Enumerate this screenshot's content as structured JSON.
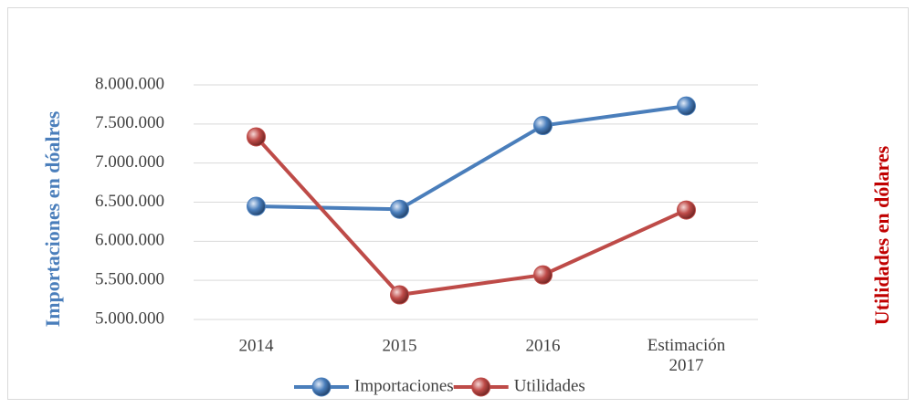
{
  "chart_data": {
    "type": "line",
    "categories": [
      "2014",
      "2015",
      "2016",
      "Estimación 2017"
    ],
    "series": [
      {
        "name": "Importaciones",
        "color": "#4a7ebb",
        "values": [
          6447000,
          6410000,
          7480000,
          7730000
        ]
      },
      {
        "name": "Utilidades",
        "color": "#be4b48",
        "values": [
          7335000,
          5315000,
          5570000,
          6400000
        ]
      }
    ],
    "y_label": "Importaciones en dóalres",
    "y2_label": "Utilidades en dólares",
    "ylim": [
      5000000,
      8000000
    ],
    "yticks": [
      {
        "value": 5000000,
        "label": "5.000.000"
      },
      {
        "value": 5500000,
        "label": "5.500.000"
      },
      {
        "value": 6000000,
        "label": "6.000.000"
      },
      {
        "value": 6500000,
        "label": "6.500.000"
      },
      {
        "value": 7000000,
        "label": "7.000.000"
      },
      {
        "value": 7500000,
        "label": "7.500.000"
      },
      {
        "value": 8000000,
        "label": "8.000.000"
      }
    ],
    "grid": true,
    "legend": "bottom"
  }
}
